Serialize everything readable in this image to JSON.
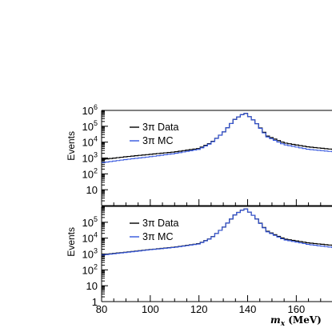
{
  "chart_data": [
    {
      "type": "line",
      "panel": "top",
      "ylabel": "Events",
      "yscale": "log",
      "ylim": [
        1,
        1000000
      ],
      "ytick_labels": [
        "10",
        "10^2",
        "10^3",
        "10^4",
        "10^5",
        "10^6"
      ],
      "legend_placement": "top-left",
      "series": [
        {
          "name": "3π Data",
          "color": "#000000",
          "x": [
            80,
            90,
            100,
            110,
            120,
            125,
            130,
            135,
            139,
            143,
            148,
            155,
            165,
            175
          ],
          "y": [
            800,
            1200,
            1700,
            2400,
            4000,
            9000,
            40000,
            300000,
            700000,
            200000,
            25000,
            9000,
            5000,
            3500
          ]
        },
        {
          "name": "3π MC",
          "color": "#3355dd",
          "x": [
            80,
            90,
            100,
            110,
            120,
            125,
            130,
            135,
            139,
            143,
            148,
            155,
            165,
            175
          ],
          "y": [
            500,
            800,
            1200,
            1900,
            3500,
            8500,
            40000,
            300000,
            700000,
            200000,
            22000,
            7000,
            3500,
            2500
          ]
        }
      ]
    },
    {
      "type": "line",
      "panel": "bottom",
      "xlabel": "m_x (MeV)",
      "ylabel": "Events",
      "yscale": "log",
      "ylim": [
        1,
        1000000
      ],
      "xlim": [
        80,
        175
      ],
      "xtick_labels": [
        "80",
        "100",
        "120",
        "140",
        "160"
      ],
      "ytick_labels": [
        "1",
        "10",
        "10^2",
        "10^3",
        "10^4",
        "10^5"
      ],
      "legend_placement": "top-left",
      "series": [
        {
          "name": "3π Data",
          "color": "#000000",
          "x": [
            80,
            90,
            100,
            110,
            120,
            125,
            130,
            135,
            139,
            143,
            148,
            155,
            165,
            175
          ],
          "y": [
            900,
            1300,
            1900,
            2700,
            4500,
            10000,
            45000,
            320000,
            750000,
            220000,
            28000,
            9000,
            5000,
            3500
          ]
        },
        {
          "name": "3π MC",
          "color": "#3355dd",
          "x": [
            80,
            90,
            100,
            110,
            120,
            125,
            130,
            135,
            139,
            143,
            148,
            155,
            165,
            175
          ],
          "y": [
            850,
            1250,
            1850,
            2600,
            4300,
            9800,
            45000,
            320000,
            750000,
            220000,
            26000,
            8000,
            4000,
            2600
          ]
        }
      ]
    }
  ]
}
